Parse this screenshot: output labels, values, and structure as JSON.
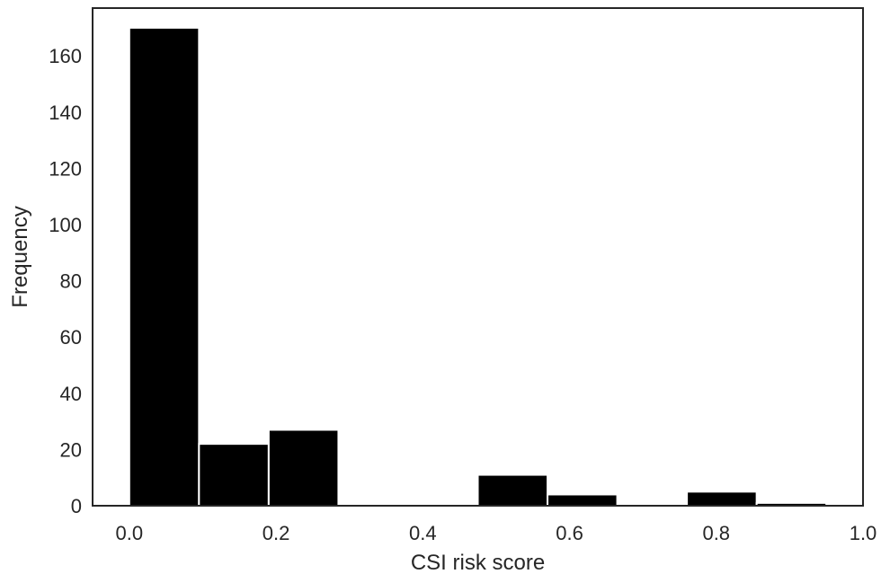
{
  "chart_data": {
    "type": "bar",
    "subtype": "histogram",
    "title": "",
    "xlabel": "CSI risk score",
    "ylabel": "Frequency",
    "xlim": [
      -0.05,
      1.0
    ],
    "ylim": [
      0,
      177
    ],
    "x_ticks": [
      0.0,
      0.2,
      0.4,
      0.6,
      0.8,
      1.0
    ],
    "x_tick_labels": [
      "0.0",
      "0.2",
      "0.4",
      "0.6",
      "0.8",
      "1.0"
    ],
    "y_ticks": [
      0,
      20,
      40,
      60,
      80,
      100,
      120,
      140,
      160
    ],
    "y_tick_labels": [
      "0",
      "20",
      "40",
      "60",
      "80",
      "100",
      "120",
      "140",
      "160"
    ],
    "bin_edges": [
      0.0,
      0.095,
      0.19,
      0.285,
      0.38,
      0.475,
      0.57,
      0.665,
      0.76,
      0.855,
      0.95
    ],
    "values": [
      170,
      22,
      27,
      0,
      0,
      11,
      4,
      0,
      5,
      1
    ],
    "bar_color": "#000000",
    "bar_edge_color": "#ffffff",
    "grid": false,
    "legend": "none"
  }
}
